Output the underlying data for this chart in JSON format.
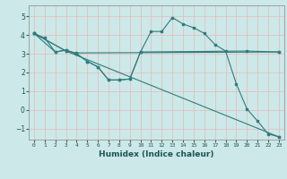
{
  "xlabel": "Humidex (Indice chaleur)",
  "ylabel": "",
  "xlim": [
    -0.5,
    23.5
  ],
  "ylim": [
    -1.6,
    5.6
  ],
  "yticks": [
    -1,
    0,
    1,
    2,
    3,
    4,
    5
  ],
  "xticks": [
    0,
    1,
    2,
    3,
    4,
    5,
    6,
    7,
    8,
    9,
    10,
    11,
    12,
    13,
    14,
    15,
    16,
    17,
    18,
    19,
    20,
    21,
    22,
    23
  ],
  "bg_color": "#cce8e8",
  "grid_color": "#e8b8b8",
  "line_color": "#2e7d7d",
  "lines": [
    {
      "x": [
        0,
        1,
        2,
        3,
        4,
        5,
        6,
        7,
        8,
        9,
        10,
        11,
        12,
        13,
        14,
        15,
        16,
        17,
        18,
        19,
        20,
        21,
        22,
        23
      ],
      "y": [
        4.1,
        3.85,
        3.1,
        3.2,
        3.0,
        2.6,
        2.3,
        1.6,
        1.6,
        1.65,
        3.1,
        4.2,
        4.2,
        4.95,
        4.6,
        4.4,
        4.1,
        3.5,
        3.15,
        1.4,
        0.05,
        -0.6,
        -1.3,
        -1.45
      ]
    },
    {
      "x": [
        0,
        2,
        3,
        4,
        5,
        6,
        7,
        8,
        9,
        10,
        20,
        23
      ],
      "y": [
        4.1,
        3.1,
        3.2,
        3.0,
        2.6,
        2.3,
        1.6,
        1.6,
        1.65,
        3.1,
        3.15,
        3.1
      ]
    },
    {
      "x": [
        0,
        3,
        4,
        23
      ],
      "y": [
        4.1,
        3.15,
        3.05,
        3.1
      ]
    },
    {
      "x": [
        0,
        3,
        23
      ],
      "y": [
        4.1,
        3.15,
        -1.45
      ]
    }
  ]
}
